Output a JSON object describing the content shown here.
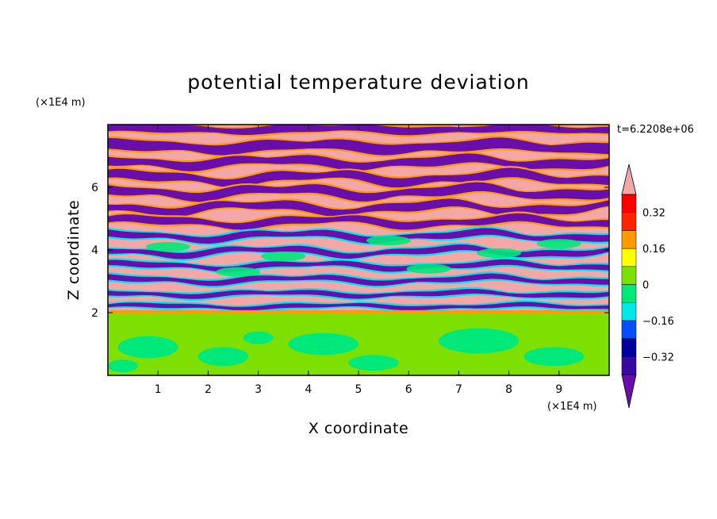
{
  "chart_data": {
    "type": "heatmap",
    "title": "potential temperature deviation",
    "xlabel": "X coordinate",
    "ylabel": "Z coordinate",
    "x_unit": "(×1E4 m)",
    "y_unit": "(×1E4 m)",
    "time_label": "t=6.2208e+06",
    "xlim": [
      0,
      10
    ],
    "ylim": [
      0,
      8
    ],
    "x_ticks": [
      "1",
      "2",
      "3",
      "4",
      "5",
      "6",
      "7",
      "8",
      "9"
    ],
    "y_ticks": [
      "2",
      "4",
      "6"
    ],
    "colorbar": {
      "levels": [
        -0.4,
        -0.32,
        -0.24,
        -0.16,
        -0.08,
        0,
        0.08,
        0.16,
        0.24,
        0.32,
        0.4
      ],
      "tick_labels": [
        "0.32",
        "0.16",
        "0",
        "−0.16",
        "−0.32"
      ],
      "tick_values": [
        0.32,
        0.16,
        0,
        -0.16,
        -0.32
      ],
      "colors": [
        "#6a0dad",
        "#3a0aa0",
        "#00009a",
        "#0050ff",
        "#00e8e8",
        "#00e87a",
        "#7ee000",
        "#ffff00",
        "#ff9a00",
        "#ff2400",
        "#ff0000",
        "#f4a7a7"
      ],
      "extend": "both"
    },
    "description_of_field": {
      "lower_layer_z": [
        0,
        2
      ],
      "lower_layer_values": "mostly 0 to 0.08 (green)",
      "upper_layer_z": [
        2,
        8
      ],
      "upper_layer_values": "alternating horizontal bands near -0.4 (purple) and 0.4 (pink)"
    }
  }
}
